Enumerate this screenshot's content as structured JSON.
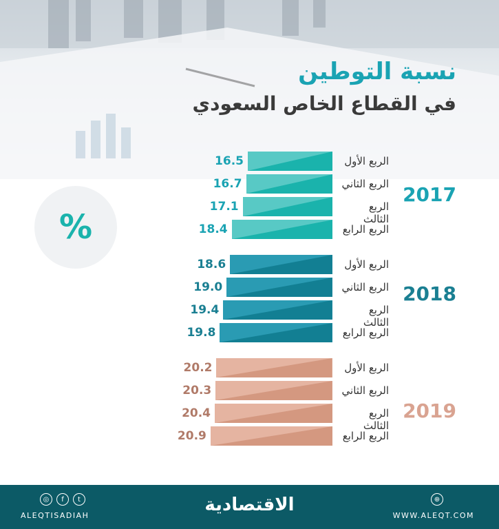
{
  "title_line1": "نسبة التوطين",
  "title_line2": "في القطاع الخاص السعودي",
  "unit_symbol": "%",
  "footer": {
    "handle": "ALEQTISADIAH",
    "logo": "الاقتصادية",
    "website": "WWW.ALEQT.COM",
    "social_icons": [
      "instagram-icon",
      "facebook-icon",
      "twitter-icon"
    ],
    "web_icon": "globe-icon"
  },
  "colors": {
    "2017": [
      "#58c9c5",
      "#1ab3ac"
    ],
    "2018": [
      "#2a9bb3",
      "#127f93"
    ],
    "2019": [
      "#e5b4a1",
      "#d49880"
    ],
    "value_2017": "#1aa3b3",
    "value_2018": "#1a7f92",
    "value_2019": "#b07a68",
    "year_2017": "#1aa3b3",
    "year_2018": "#1a7f92",
    "year_2019": "#d9a391",
    "footer_bg": "#0c5a66"
  },
  "chart_data": {
    "type": "bar",
    "orientation": "horizontal",
    "title": "نسبة التوطين في القطاع الخاص السعودي",
    "groups": [
      {
        "year": "2017",
        "categories": [
          "الربع الأول",
          "الربع الثاني",
          "الربع الثالث",
          "الربع الرابع"
        ],
        "values": [
          16.5,
          16.7,
          17.1,
          18.4
        ]
      },
      {
        "year": "2018",
        "categories": [
          "الربع الأول",
          "الربع الثاني",
          "الربع الثالث",
          "الربع الرابع"
        ],
        "values": [
          18.6,
          19.0,
          19.4,
          19.8
        ]
      },
      {
        "year": "2019",
        "categories": [
          "الربع الأول",
          "الربع الثاني",
          "الربع الثالث",
          "الربع الرابع"
        ],
        "values": [
          20.2,
          20.3,
          20.4,
          20.9
        ]
      }
    ]
  }
}
